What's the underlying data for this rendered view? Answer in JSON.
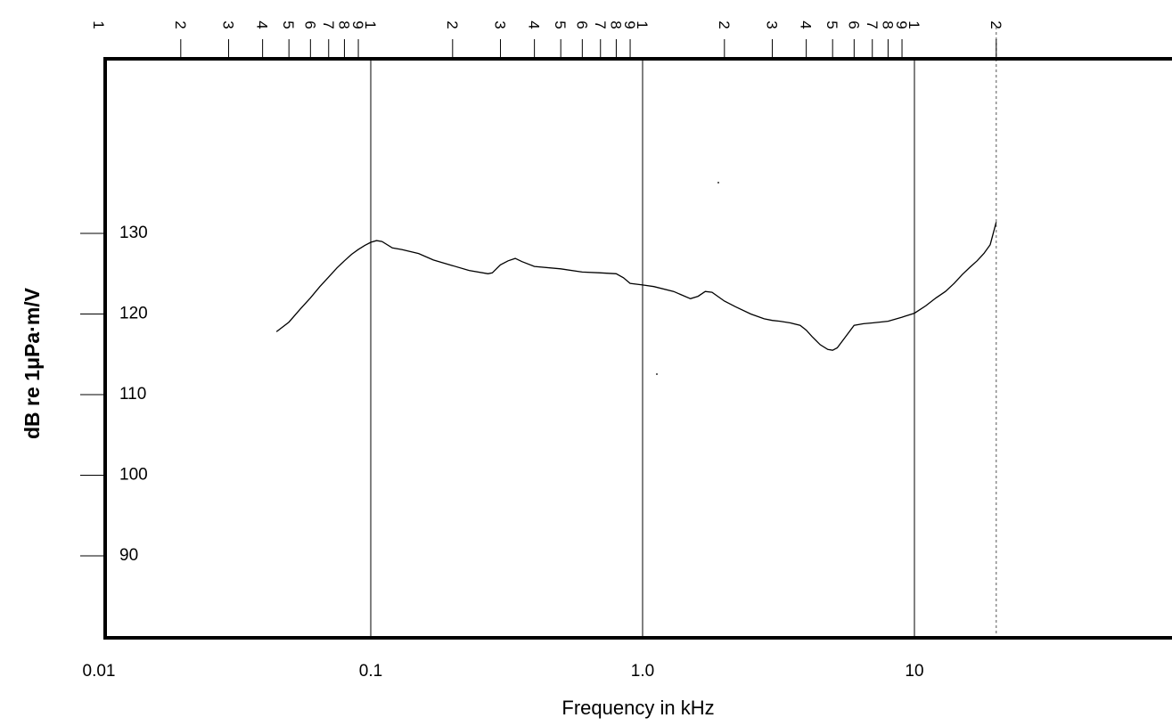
{
  "chart_data": {
    "type": "line",
    "title": "",
    "xlabel": "Frequency in kHz",
    "ylabel": "dB re 1μPa·m/V",
    "x_scale": "log",
    "xlim": [
      0.01,
      20
    ],
    "ylim": [
      80,
      150
    ],
    "grid": "vertical major decade lines",
    "x_tick_labels": [
      {
        "value": 0.01,
        "label": "0.01"
      },
      {
        "value": 0.1,
        "label": "0.1"
      },
      {
        "value": 1.0,
        "label": "1.0"
      },
      {
        "value": 10,
        "label": "10"
      }
    ],
    "y_tick_labels": [
      {
        "value": 90,
        "label": "90"
      },
      {
        "value": 100,
        "label": "100"
      },
      {
        "value": 110,
        "label": "110"
      },
      {
        "value": 120,
        "label": "120"
      },
      {
        "value": 130,
        "label": "130"
      }
    ],
    "top_scale_labels": [
      {
        "value": 0.01,
        "label": "1"
      },
      {
        "value": 0.02,
        "label": "2"
      },
      {
        "value": 0.03,
        "label": "3"
      },
      {
        "value": 0.04,
        "label": "4"
      },
      {
        "value": 0.05,
        "label": "5"
      },
      {
        "value": 0.06,
        "label": "6"
      },
      {
        "value": 0.07,
        "label": "7"
      },
      {
        "value": 0.08,
        "label": "8"
      },
      {
        "value": 0.09,
        "label": "9"
      },
      {
        "value": 0.1,
        "label": "1"
      },
      {
        "value": 0.2,
        "label": "2"
      },
      {
        "value": 0.3,
        "label": "3"
      },
      {
        "value": 0.4,
        "label": "4"
      },
      {
        "value": 0.5,
        "label": "5"
      },
      {
        "value": 0.6,
        "label": "6"
      },
      {
        "value": 0.7,
        "label": "7"
      },
      {
        "value": 0.8,
        "label": "8"
      },
      {
        "value": 0.9,
        "label": "9"
      },
      {
        "value": 1,
        "label": "1"
      },
      {
        "value": 2,
        "label": "2"
      },
      {
        "value": 3,
        "label": "3"
      },
      {
        "value": 4,
        "label": "4"
      },
      {
        "value": 5,
        "label": "5"
      },
      {
        "value": 6,
        "label": "6"
      },
      {
        "value": 7,
        "label": "7"
      },
      {
        "value": 8,
        "label": "8"
      },
      {
        "value": 9,
        "label": "9"
      },
      {
        "value": 10,
        "label": "1"
      },
      {
        "value": 20,
        "label": "2"
      }
    ],
    "series": [
      {
        "x": [
          0.045,
          0.05,
          0.055,
          0.06,
          0.065,
          0.07,
          0.075,
          0.08,
          0.085,
          0.09,
          0.095,
          0.1,
          0.105,
          0.11,
          0.12,
          0.13,
          0.15,
          0.17,
          0.2,
          0.23,
          0.27,
          0.28,
          0.3,
          0.32,
          0.34,
          0.36,
          0.4,
          0.5,
          0.6,
          0.7,
          0.8,
          0.85,
          0.9,
          1.0,
          1.1,
          1.3,
          1.5,
          1.6,
          1.7,
          1.8,
          2.0,
          2.2,
          2.5,
          2.8,
          3.0,
          3.2,
          3.5,
          3.8,
          4.0,
          4.2,
          4.5,
          4.8,
          5.0,
          5.2,
          5.5,
          6.0,
          6.5,
          7.0,
          8.0,
          9.0,
          10,
          11,
          12,
          13,
          14,
          15,
          16,
          17,
          18,
          19,
          20
        ],
        "y": [
          117.8,
          119.0,
          120.6,
          122.0,
          123.4,
          124.6,
          125.7,
          126.6,
          127.4,
          128.0,
          128.5,
          128.9,
          129.1,
          129.0,
          128.2,
          128.0,
          127.5,
          126.7,
          126.0,
          125.4,
          125.0,
          125.1,
          126.1,
          126.6,
          126.9,
          126.5,
          125.9,
          125.6,
          125.2,
          125.1,
          125.0,
          124.5,
          123.8,
          123.6,
          123.4,
          122.8,
          121.9,
          122.2,
          122.8,
          122.7,
          121.6,
          120.9,
          120.0,
          119.4,
          119.2,
          119.1,
          118.9,
          118.6,
          118.0,
          117.2,
          116.2,
          115.6,
          115.5,
          115.8,
          116.9,
          118.6,
          118.8,
          118.9,
          119.1,
          119.6,
          120.1,
          121.0,
          122.0,
          122.8,
          123.8,
          124.9,
          125.8,
          126.6,
          127.5,
          128.6,
          131.4
        ]
      }
    ]
  }
}
